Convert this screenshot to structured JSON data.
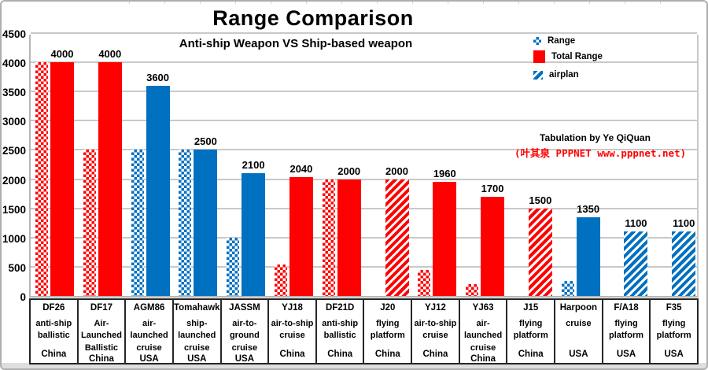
{
  "title": "Range Comparison",
  "subtitle": "Anti-ship Weapon VS Ship-based weapon",
  "legend": {
    "items": [
      {
        "label": "Range",
        "swatch": "checkered-blue"
      },
      {
        "label": "Total Range",
        "swatch": "solid-red"
      },
      {
        "label": "airplan",
        "swatch": "hatch-blue"
      }
    ]
  },
  "annotation": {
    "line1": "Tabulation by Ye QiQuan",
    "line2": "(叶其泉 PPPNET www.pppnet.net)"
  },
  "colors": {
    "china_red": "#FF0000",
    "usa_blue": "#0070C0",
    "grid": "#C9C9C9"
  },
  "chart_data": {
    "type": "bar",
    "title": "Range Comparison",
    "subtitle": "Anti-ship Weapon VS Ship-based weapon",
    "xlabel": "",
    "ylabel": "",
    "ylim": [
      0,
      4500
    ],
    "yticks": [
      0,
      500,
      1000,
      1500,
      2000,
      2500,
      3000,
      3500,
      4000,
      4500
    ],
    "ytick_labels": [
      "0",
      "500",
      "1000",
      "1500",
      "2000",
      "2500",
      "3000",
      "3500",
      "4000",
      "4500"
    ],
    "grid": true,
    "legend_position": "top-right",
    "legend_entries": [
      "Range",
      "Total Range",
      "airplan"
    ],
    "series_note": "Range = patterned checkered bar; Total Range = solid bar (red=China, blue=USA); airplan = diagonal-hatched bar for aircraft platforms",
    "categories": [
      {
        "name": "DF26",
        "desc": "anti-ship\nballistic",
        "country": "China",
        "color": "red",
        "range": 4000,
        "total": 4000,
        "total_style": "solid",
        "label": "4000"
      },
      {
        "name": "DF17",
        "desc": "Air-\nLaunched\nBallistic",
        "country": "China",
        "color": "red",
        "range": 2500,
        "total": 4000,
        "total_style": "solid",
        "label": "4000"
      },
      {
        "name": "AGM86",
        "desc": "air-\nlaunched\ncruise",
        "country": "USA",
        "color": "blue",
        "range": 2500,
        "total": 3600,
        "total_style": "solid",
        "label": "3600"
      },
      {
        "name": "Tomahawk",
        "desc": "ship-\nlaunched\ncruise",
        "country": "USA",
        "color": "blue",
        "range": 2500,
        "total": 2500,
        "total_style": "solid",
        "label": "2500"
      },
      {
        "name": "JASSM",
        "desc": "air-to-\nground\ncruise",
        "country": "USA",
        "color": "blue",
        "range": 1000,
        "total": 2100,
        "total_style": "solid",
        "label": "2100"
      },
      {
        "name": "YJ18",
        "desc": "air-to-ship\ncruise",
        "country": "China",
        "color": "red",
        "range": 540,
        "total": 2040,
        "total_style": "solid",
        "label": "2040"
      },
      {
        "name": "DF21D",
        "desc": "anti-ship\nballistic",
        "country": "China",
        "color": "red",
        "range": 2000,
        "total": 2000,
        "total_style": "solid",
        "label": "2000"
      },
      {
        "name": "J20",
        "desc": "flying\nplatform",
        "country": "China",
        "color": "red",
        "range": null,
        "total": 2000,
        "total_style": "hatch",
        "label": "2000"
      },
      {
        "name": "YJ12",
        "desc": "air-to-ship\ncruise",
        "country": "China",
        "color": "red",
        "range": 450,
        "total": 1960,
        "total_style": "solid",
        "label": "1960"
      },
      {
        "name": "YJ63",
        "desc": "air-\nlaunched\ncruise",
        "country": "China",
        "color": "red",
        "range": 200,
        "total": 1700,
        "total_style": "solid",
        "label": "1700"
      },
      {
        "name": "J15",
        "desc": "flying\nplatform",
        "country": "China",
        "color": "red",
        "range": null,
        "total": 1500,
        "total_style": "hatch",
        "label": "1500"
      },
      {
        "name": "Harpoon",
        "desc": "cruise",
        "country": "USA",
        "color": "blue",
        "range": 250,
        "total": 1350,
        "total_style": "solid",
        "label": "1350"
      },
      {
        "name": "F/A18",
        "desc": "flying\nplatform",
        "country": "USA",
        "color": "blue",
        "range": null,
        "total": 1100,
        "total_style": "hatch",
        "label": "1100"
      },
      {
        "name": "F35",
        "desc": "flying\nplatform",
        "country": "USA",
        "color": "blue",
        "range": null,
        "total": 1100,
        "total_style": "hatch",
        "label": "1100"
      }
    ]
  }
}
